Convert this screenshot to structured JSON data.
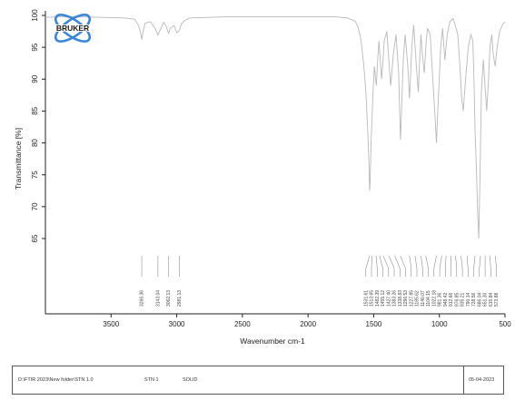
{
  "brand": {
    "name": "BRUKER",
    "colors": {
      "blue": "#3a86d6",
      "dark": "#1a1a1a"
    }
  },
  "chart_data": {
    "type": "line",
    "xlabel": "Wavenumber cm-1",
    "ylabel": "Transmittance [%]",
    "xlim": [
      4000,
      500
    ],
    "ylim": [
      60,
      100
    ],
    "x_ticks": [
      3500,
      3000,
      2500,
      2000,
      1500,
      1000,
      500
    ],
    "y_ticks": [
      100,
      95,
      90,
      85,
      80,
      75,
      70,
      65
    ],
    "line_color": "#b8b8b8",
    "series": [
      {
        "x": [
          4000,
          3800,
          3600,
          3400,
          3320,
          3290,
          3275,
          3266,
          3255,
          3240,
          3200,
          3160,
          3143,
          3125,
          3100,
          3080,
          3070,
          3062,
          3050,
          3020,
          3000,
          2981,
          2965,
          2940,
          2900,
          2600,
          2300,
          2000,
          1800,
          1700,
          1640,
          1620,
          1600,
          1590,
          1575,
          1560,
          1550,
          1542,
          1535,
          1531,
          1527,
          1520,
          1505,
          1495,
          1480,
          1470,
          1460,
          1450,
          1440,
          1430,
          1420,
          1400,
          1385,
          1370,
          1350,
          1330,
          1310,
          1296,
          1290,
          1275,
          1260,
          1240,
          1228,
          1222,
          1210,
          1195,
          1175,
          1160,
          1150,
          1140,
          1130,
          1115,
          1100,
          1090,
          1070,
          1050,
          1030,
          1022,
          1010,
          990,
          975,
          958,
          940,
          920,
          895,
          880,
          860,
          840,
          830,
          818,
          800,
          780,
          760,
          745,
          735,
          728,
          718,
          708,
          700,
          690,
          680,
          665,
          652,
          640,
          625,
          615,
          600,
          590,
          575,
          560,
          540,
          520,
          500
        ],
        "y": [
          99.7,
          99.8,
          99.7,
          99.6,
          99.4,
          98.4,
          97.3,
          96.2,
          97.6,
          98.8,
          99.0,
          97.8,
          96.9,
          97.8,
          98.9,
          98.3,
          97.6,
          97.2,
          98.0,
          98.4,
          97.3,
          97.6,
          98.6,
          99.2,
          99.6,
          99.8,
          99.8,
          99.8,
          99.8,
          99.6,
          99.1,
          98.2,
          96.5,
          95.0,
          92.0,
          88.0,
          84.0,
          80.0,
          76.0,
          72.5,
          74.0,
          80.0,
          88.0,
          92.0,
          89.0,
          93.0,
          96.0,
          93.0,
          90.0,
          92.5,
          96.0,
          97.5,
          93.0,
          89.0,
          94.0,
          97.0,
          91.0,
          80.5,
          84.0,
          93.0,
          97.0,
          92.0,
          87.0,
          89.0,
          95.0,
          98.5,
          92.0,
          88.0,
          93.0,
          97.0,
          94.0,
          91.0,
          96.0,
          98.0,
          97.0,
          90.0,
          83.0,
          80.0,
          86.0,
          95.0,
          98.0,
          93.0,
          97.0,
          99.0,
          99.5,
          98.5,
          97.0,
          91.0,
          87.0,
          85.0,
          90.0,
          95.0,
          97.0,
          96.0,
          89.0,
          82.0,
          76.0,
          69.0,
          65.0,
          75.0,
          88.0,
          93.0,
          89.0,
          85.0,
          90.0,
          95.0,
          97.0,
          94.0,
          92.0,
          95.0,
          97.5,
          98.5,
          99.0
        ]
      }
    ],
    "peak_labels": [
      {
        "wn": 3266.36,
        "label": "3266.36"
      },
      {
        "wn": 3143.04,
        "label": "3143.04"
      },
      {
        "wn": 3062.13,
        "label": "3062.13"
      },
      {
        "wn": 2981.13,
        "label": "2981.13"
      },
      {
        "wn": 1531.61,
        "label": "1531.61"
      },
      {
        "wn": 1513.65,
        "label": "1513.65"
      },
      {
        "wn": 1482.39,
        "label": "1482.39"
      },
      {
        "wn": 1455.12,
        "label": "1455.12"
      },
      {
        "wn": 1427.4,
        "label": "1427.40"
      },
      {
        "wn": 1383.26,
        "label": "1383.26"
      },
      {
        "wn": 1338.83,
        "label": "1338.83"
      },
      {
        "wn": 1296.53,
        "label": "1296.53"
      },
      {
        "wn": 1227.85,
        "label": "1227.85"
      },
      {
        "wn": 1185.62,
        "label": "1185.62"
      },
      {
        "wn": 1140.07,
        "label": "1140.07"
      },
      {
        "wn": 1104.15,
        "label": "1104.15"
      },
      {
        "wn": 1022.18,
        "label": "1022.18"
      },
      {
        "wn": 981.36,
        "label": "981.36"
      },
      {
        "wn": 948.42,
        "label": "948.42"
      },
      {
        "wn": 912.66,
        "label": "912.66"
      },
      {
        "wn": 876.85,
        "label": "876.85"
      },
      {
        "wn": 835.21,
        "label": "835.21"
      },
      {
        "wn": 790.14,
        "label": "790.14"
      },
      {
        "wn": 728.56,
        "label": "728.56"
      },
      {
        "wn": 686.04,
        "label": "686.04"
      },
      {
        "wn": 651.3,
        "label": "651.30"
      },
      {
        "wn": 615.84,
        "label": "615.84"
      },
      {
        "wn": 573.88,
        "label": "573.88"
      }
    ]
  },
  "footer": {
    "path": "D:\\FTIR 2023\\New folder\\STN 1.0",
    "sample": "STN 1",
    "state": "SOLID",
    "date": "05-04-2023"
  }
}
